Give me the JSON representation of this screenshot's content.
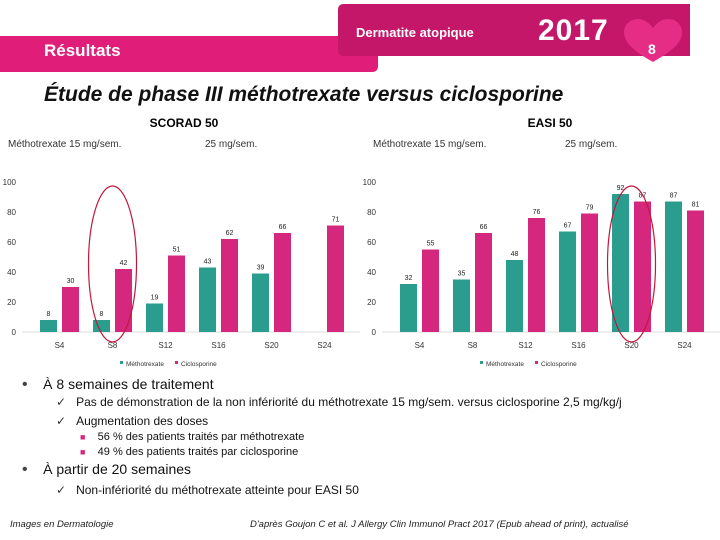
{
  "header": {
    "section": "Résultats",
    "topic": "Dermatite atopique",
    "year": "2017",
    "page_number": "8",
    "colors": {
      "banner": "#e01e7a",
      "banner_dark": "#c4176a",
      "heart": "#e52d86"
    }
  },
  "title": "Étude de phase III méthotrexate versus ciclosporine",
  "dose_label_left": "Méthotrexate 15 mg/sem.",
  "dose_label_right": "25 mg/sem.",
  "chart_data": [
    {
      "type": "bar",
      "title": "SCORAD 50",
      "categories": [
        "S4",
        "S8",
        "S12",
        "S16",
        "S20",
        "S24"
      ],
      "series": [
        {
          "name": "Méthotrexate",
          "color": "#2a9d8f",
          "values": [
            8,
            8,
            19,
            43,
            39,
            null
          ]
        },
        {
          "name": "Ciclosporine",
          "color": "#d6277f",
          "values": [
            30,
            42,
            51,
            62,
            66,
            71
          ]
        }
      ],
      "ylim": [
        0,
        100
      ],
      "yticks": [
        0,
        20,
        40,
        60,
        80,
        100
      ],
      "highlight": "S8",
      "grid": false,
      "legend": "bottom"
    },
    {
      "type": "bar",
      "title": "EASI 50",
      "categories": [
        "S4",
        "S8",
        "S12",
        "S16",
        "S20",
        "S24"
      ],
      "series": [
        {
          "name": "Méthotrexate",
          "color": "#2a9d8f",
          "values": [
            32,
            35,
            48,
            67,
            92,
            87
          ]
        },
        {
          "name": "Ciclosporine",
          "color": "#d6277f",
          "values": [
            55,
            66,
            76,
            79,
            87,
            81
          ]
        }
      ],
      "ylim": [
        0,
        100
      ],
      "yticks": [
        0,
        20,
        40,
        60,
        80,
        100
      ],
      "highlight": "S20",
      "grid": false,
      "legend": "bottom"
    }
  ],
  "bullets": [
    {
      "text": "À 8 semaines de traitement",
      "items": [
        {
          "text": "Pas de démonstration de la non infériorité du méthotrexate 15 mg/sem. versus ciclosporine 2,5 mg/kg/j",
          "items": []
        },
        {
          "text": "Augmentation des doses",
          "items": [
            "56 % des patients traités par méthotrexate",
            "49 % des patients traités par ciclosporine"
          ]
        }
      ]
    },
    {
      "text": "À partir de 20 semaines",
      "items": [
        {
          "text": "Non-infériorité du méthotrexate atteinte pour EASI 50",
          "items": []
        }
      ]
    }
  ],
  "footer": {
    "left": "Images en Dermatologie",
    "right": "D'après Goujon C et al. J Allergy Clin Immunol Pract 2017 (Epub ahead of print), actualisé"
  }
}
